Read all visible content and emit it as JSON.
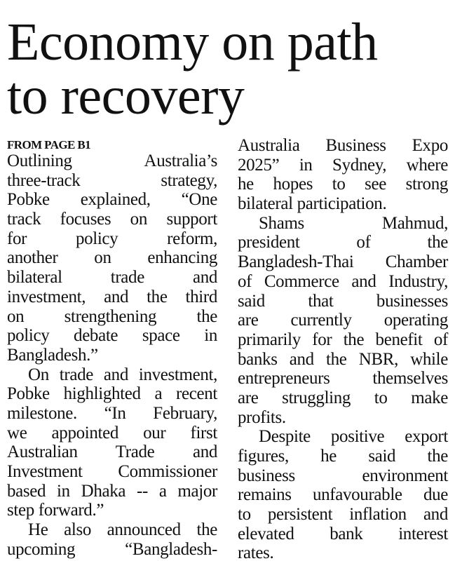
{
  "headline": [
    "Economy on path",
    "to recovery"
  ],
  "kicker": "FROM PAGE B1",
  "columns": [
    {
      "paragraphs": [
        {
          "indent": false,
          "lines": [
            "Outlining Australia’s",
            "three-track strategy,",
            "Pobke explained, “One",
            "track focuses on support",
            "for policy reform,",
            "another on enhancing",
            "bilateral trade and",
            "investment, and the third",
            "on strengthening the",
            "policy debate space in",
            "Bangladesh.”"
          ]
        },
        {
          "indent": true,
          "lines": [
            "On trade and investment,",
            "Pobke highlighted a recent",
            "milestone. “In February,",
            "we appointed our first",
            "Australian Trade and",
            "Investment Commissioner",
            "based in Dhaka -- a major",
            "step forward.”"
          ]
        },
        {
          "indent": true,
          "continues": true,
          "lines": [
            "He also announced the",
            "upcoming “Bangladesh-"
          ]
        }
      ]
    },
    {
      "paragraphs": [
        {
          "indent": false,
          "lines": [
            "Australia Business Expo",
            "2025” in Sydney, where",
            "he hopes to see strong",
            "bilateral participation."
          ]
        },
        {
          "indent": true,
          "lines": [
            "Shams Mahmud,",
            "president of the",
            "Bangladesh-Thai Chamber",
            "of Commerce and Industry,",
            "said that businesses",
            "are currently operating",
            "primarily for the benefit of",
            "banks and the NBR, while",
            "entrepreneurs themselves",
            "are struggling to make",
            "profits."
          ]
        },
        {
          "indent": true,
          "lines": [
            "Despite positive export",
            "figures, he said the",
            "business environment",
            "remains unfavourable due",
            "to persistent inflation and",
            "elevated bank interest",
            "rates."
          ]
        }
      ]
    }
  ]
}
